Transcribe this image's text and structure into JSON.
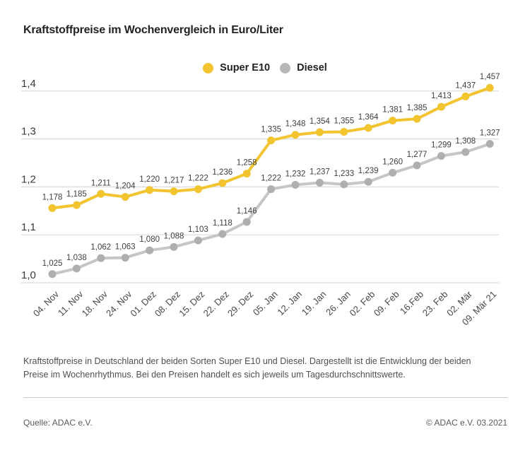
{
  "title": "Kraftstoffpreise im Wochenvergleich in Euro/Liter",
  "legend": [
    {
      "label": "Super E10",
      "color": "#F2C430"
    },
    {
      "label": "Diesel",
      "color": "#B8B8B8"
    }
  ],
  "chart_data": {
    "type": "line",
    "title": "Kraftstoffpreise im Wochenvergleich in Euro/Liter",
    "categories": [
      "04. Nov",
      "11. Nov",
      "18. Nov",
      "24. Nov",
      "01. Dez",
      "08. Dez",
      "15. Dez",
      "22. Dez",
      "29. Dez",
      "05. Jan",
      "12. Jan",
      "19. Jan",
      "26. Jan",
      "02. Feb",
      "09. Feb",
      "16.Feb",
      "23. Feb",
      "02. Mär",
      "09. Mär 21"
    ],
    "series": [
      {
        "name": "Super E10",
        "line_color": "#F2C430",
        "marker_color": "#F2C430",
        "values": [
          1.178,
          1.185,
          1.211,
          1.204,
          1.22,
          1.217,
          1.222,
          1.236,
          1.258,
          1.335,
          1.348,
          1.354,
          1.355,
          1.364,
          1.381,
          1.385,
          1.413,
          1.437,
          1.457
        ]
      },
      {
        "name": "Diesel",
        "line_color": "#C6C6C6",
        "marker_color": "#AFAFAF",
        "values": [
          1.025,
          1.038,
          1.062,
          1.063,
          1.08,
          1.088,
          1.103,
          1.118,
          1.146,
          1.222,
          1.232,
          1.237,
          1.233,
          1.239,
          1.26,
          1.277,
          1.299,
          1.308,
          1.327
        ]
      }
    ],
    "xlabel": "",
    "ylabel": "Euro/Liter",
    "ylim": [
      1.0,
      1.4
    ],
    "y_ticks": [
      "1,0",
      "1,1",
      "1,2",
      "1,3",
      "1,4"
    ],
    "grid": true,
    "legend_position": "top",
    "value_labels": "shown above each point, decimal comma, 3 places",
    "colors": {
      "grid": "#DBDBDB",
      "tick_text": "#3a3a3a",
      "value_text": "#3e3e3e",
      "x_text": "#484848"
    }
  },
  "description": "Kraftstoffpreise in Deutschland der beiden Sorten Super E10 und Diesel. Dargestellt ist die Entwicklung der beiden Preise im Wochenrhythmus. Bei den Preisen handelt es sich jeweils um Tagesdurchschnittswerte.",
  "footer": {
    "source": "Quelle: ADAC e.V.",
    "copyright": "© ADAC e.V. 03.2021"
  }
}
